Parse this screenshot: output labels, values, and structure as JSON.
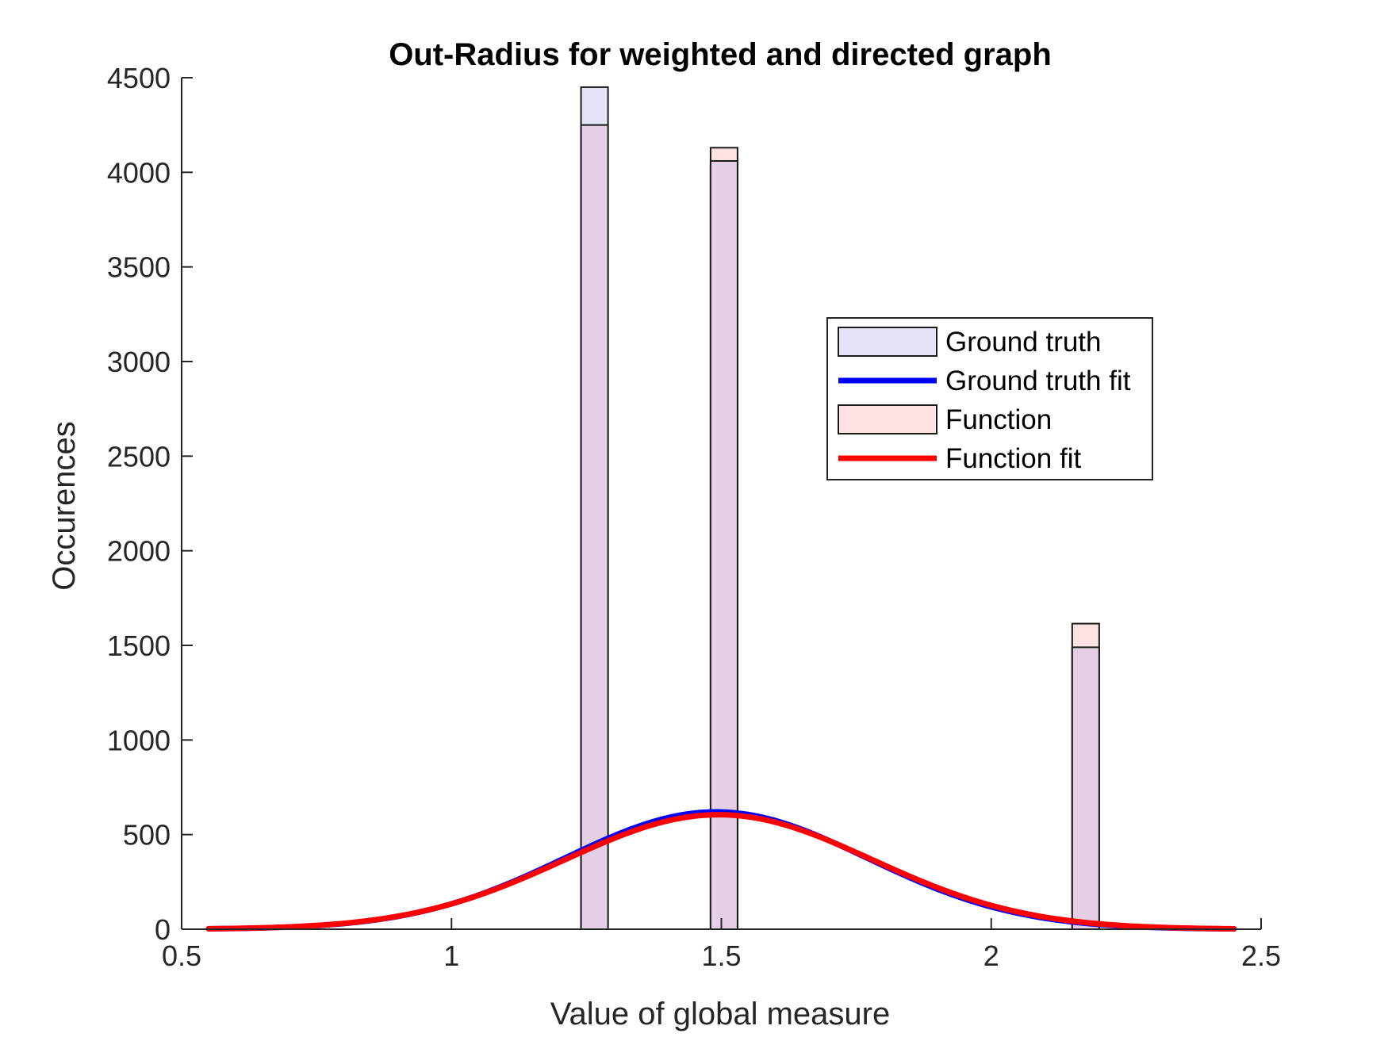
{
  "chart_data": {
    "type": "bar",
    "title": "Out-Radius for weighted and directed graph",
    "xlabel": "Value of global measure",
    "ylabel": "Occurences",
    "xlim": [
      0.5,
      2.5
    ],
    "ylim": [
      0,
      4500
    ],
    "xticks": [
      0.5,
      1,
      1.5,
      2,
      2.5
    ],
    "xtick_labels": [
      "0.5",
      "1",
      "1.5",
      "2",
      "2.5"
    ],
    "yticks": [
      0,
      500,
      1000,
      1500,
      2000,
      2500,
      3000,
      3500,
      4000,
      4500
    ],
    "ytick_labels": [
      "0",
      "500",
      "1000",
      "1500",
      "2000",
      "2500",
      "3000",
      "3500",
      "4000",
      "4500"
    ],
    "grid": false,
    "legend_position": "upper-right",
    "histograms": [
      {
        "name": "Ground truth",
        "face_color": "#e3e3fa",
        "bins": [
          {
            "x0": 1.24,
            "x1": 1.29,
            "value": 4450
          },
          {
            "x0": 1.48,
            "x1": 1.53,
            "value": 4060
          },
          {
            "x0": 2.15,
            "x1": 2.2,
            "value": 1490
          }
        ]
      },
      {
        "name": "Function",
        "face_color": "#fde2e3",
        "bins": [
          {
            "x0": 1.24,
            "x1": 1.29,
            "value": 4250
          },
          {
            "x0": 1.48,
            "x1": 1.53,
            "value": 4130
          },
          {
            "x0": 2.15,
            "x1": 2.2,
            "value": 1615
          }
        ]
      }
    ],
    "overlap_color": "#e5cfe6",
    "fits": [
      {
        "name": "Ground truth fit",
        "color": "#0000ff",
        "peak": 620,
        "mean": 1.49,
        "sigma": 0.28,
        "x_range": [
          0.55,
          2.45
        ]
      },
      {
        "name": "Function fit",
        "color": "#ff0000",
        "peak": 605,
        "mean": 1.495,
        "sigma": 0.285,
        "x_range": [
          0.55,
          2.45
        ]
      }
    ],
    "legend": [
      {
        "label": "Ground truth",
        "kind": "patch",
        "color": "#e3e3fa"
      },
      {
        "label": "Ground truth fit",
        "kind": "line",
        "color": "#0000ff"
      },
      {
        "label": "Function",
        "kind": "patch",
        "color": "#fde2e3"
      },
      {
        "label": "Function fit",
        "kind": "line",
        "color": "#ff0000"
      }
    ]
  }
}
